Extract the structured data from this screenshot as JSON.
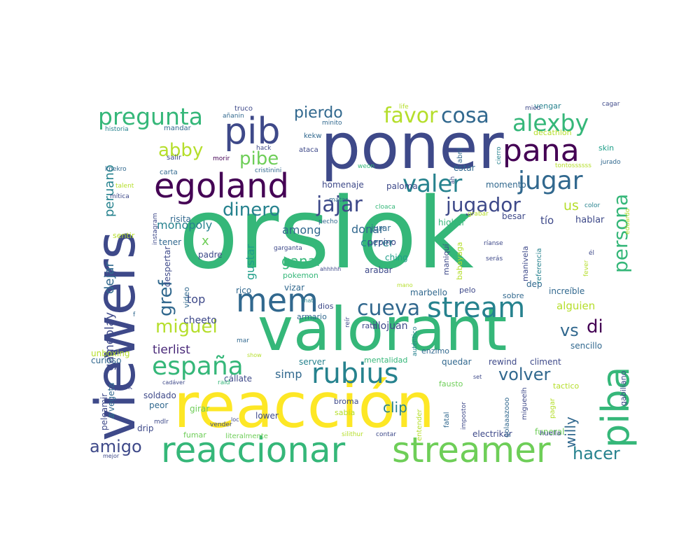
{
  "palette": [
    "#440154",
    "#482878",
    "#3e4989",
    "#31688e",
    "#26828e",
    "#1f9e89",
    "#35b779",
    "#6ece58",
    "#b5de2b",
    "#fde725"
  ],
  "words": [
    {
      "text": "orslok",
      "color": "#35b779",
      "weight": 1.0
    },
    {
      "text": "viewers",
      "color": "#3e4989",
      "weight": 0.8
    },
    {
      "text": "poner",
      "color": "#3e4989",
      "weight": 0.74
    },
    {
      "text": "valorant",
      "color": "#35b779",
      "weight": 0.78
    },
    {
      "text": "reacción",
      "color": "#fde725",
      "weight": 0.76
    },
    {
      "text": "pib",
      "color": "#3e4989",
      "weight": 0.46
    },
    {
      "text": "pana",
      "color": "#440154",
      "weight": 0.38
    },
    {
      "text": "egoland",
      "color": "#440154",
      "weight": 0.43
    },
    {
      "text": "reaccionar",
      "color": "#35b779",
      "weight": 0.48
    },
    {
      "text": "streamer",
      "color": "#6ece58",
      "weight": 0.48
    },
    {
      "text": "piba",
      "color": "#35b779",
      "weight": 0.5
    },
    {
      "text": "mem",
      "color": "#31688e",
      "weight": 0.42
    },
    {
      "text": "stream",
      "color": "#26828e",
      "weight": 0.38
    },
    {
      "text": "rubius",
      "color": "#26828e",
      "weight": 0.36
    },
    {
      "text": "españa",
      "color": "#35b779",
      "weight": 0.33
    },
    {
      "text": "jugar",
      "color": "#31688e",
      "weight": 0.33
    },
    {
      "text": "pregunta",
      "color": "#35b779",
      "weight": 0.3
    },
    {
      "text": "alexby",
      "color": "#35b779",
      "weight": 0.3
    },
    {
      "text": "valer",
      "color": "#26828e",
      "weight": 0.32
    },
    {
      "text": "cueva",
      "color": "#31688e",
      "weight": 0.29
    },
    {
      "text": "jajar",
      "color": "#3e4989",
      "weight": 0.29
    },
    {
      "text": "cosa",
      "color": "#31688e",
      "weight": 0.27
    },
    {
      "text": "favor",
      "color": "#b5de2b",
      "weight": 0.27
    },
    {
      "text": "persona",
      "color": "#35b779",
      "weight": 0.25
    },
    {
      "text": "pibe",
      "color": "#6ece58",
      "weight": 0.23
    },
    {
      "text": "abby",
      "color": "#b5de2b",
      "weight": 0.24
    },
    {
      "text": "dinero",
      "color": "#26828e",
      "weight": 0.24
    },
    {
      "text": "jugador",
      "color": "#3e4989",
      "weight": 0.25
    },
    {
      "text": "gref",
      "color": "#31688e",
      "weight": 0.24
    },
    {
      "text": "miguel",
      "color": "#b5de2b",
      "weight": 0.24
    },
    {
      "text": "volver",
      "color": "#31688e",
      "weight": 0.23
    },
    {
      "text": "amigo",
      "color": "#3e4989",
      "weight": 0.22
    },
    {
      "text": "hacer",
      "color": "#26828e",
      "weight": 0.22
    },
    {
      "text": "di",
      "color": "#440154",
      "weight": 0.23
    },
    {
      "text": "vs",
      "color": "#31688e",
      "weight": 0.22
    },
    {
      "text": "pierdo",
      "color": "#31688e",
      "weight": 0.2
    },
    {
      "text": "willy",
      "color": "#31688e",
      "weight": 0.18
    },
    {
      "text": "ganar",
      "color": "#35b779",
      "weight": 0.18
    },
    {
      "text": "clip",
      "color": "#26828e",
      "weight": 0.17
    },
    {
      "text": "peruano",
      "color": "#26828e",
      "weight": 0.16
    },
    {
      "text": "dejar",
      "color": "#31688e",
      "weight": 0.16
    },
    {
      "text": "gameplay",
      "color": "#3e4989",
      "weight": 0.15
    },
    {
      "text": "tierlist",
      "color": "#482878",
      "weight": 0.15
    },
    {
      "text": "monopoly",
      "color": "#26828e",
      "weight": 0.14
    },
    {
      "text": "among",
      "color": "#31688e",
      "weight": 0.14
    },
    {
      "text": "correr",
      "color": "#26828e",
      "weight": 0.14
    },
    {
      "text": "donar",
      "color": "#31688e",
      "weight": 0.14
    },
    {
      "text": "top",
      "color": "#3e4989",
      "weight": 0.14
    },
    {
      "text": "gustar",
      "color": "#1f9e89",
      "weight": 0.14
    },
    {
      "text": "us",
      "color": "#b5de2b",
      "weight": 0.16
    },
    {
      "text": "alguien",
      "color": "#b5de2b",
      "weight": 0.13
    },
    {
      "text": "simp",
      "color": "#31688e",
      "weight": 0.13
    },
    {
      "text": "cheeto",
      "color": "#3e4989",
      "weight": 0.12
    },
    {
      "text": "illojuan",
      "color": "#3e4989",
      "weight": 0.12
    },
    {
      "text": "x",
      "color": "#6ece58",
      "weight": 0.13
    },
    {
      "text": "tío",
      "color": "#3e4989",
      "weight": 0.11
    },
    {
      "text": "hablar",
      "color": "#3e4989",
      "weight": 0.1
    },
    {
      "text": "risita",
      "color": "#31688e",
      "weight": 0.1
    },
    {
      "text": "sentir",
      "color": "#b5de2b",
      "weight": 0.1
    },
    {
      "text": "tener",
      "color": "#31688e",
      "weight": 0.09
    },
    {
      "text": "ching",
      "color": "#1f9e89",
      "weight": 0.09
    },
    {
      "text": "pepino",
      "color": "#3e4989",
      "weight": 0.09
    },
    {
      "text": "jurar",
      "color": "#31688e",
      "weight": 0.09
    },
    {
      "text": "higher",
      "color": "#35b779",
      "weight": 0.09
    },
    {
      "text": "paloma",
      "color": "#3e4989",
      "weight": 0.09
    },
    {
      "text": "homenaje",
      "color": "#3e4989",
      "weight": 0.09
    },
    {
      "text": "momento",
      "color": "#31688e",
      "weight": 0.09
    },
    {
      "text": "besar",
      "color": "#3e4989",
      "weight": 0.09
    },
    {
      "text": "estar",
      "color": "#31688e",
      "weight": 0.09
    },
    {
      "text": "arabar",
      "color": "#3e4989",
      "weight": 0.09
    },
    {
      "text": "padre",
      "color": "#3e4989",
      "weight": 0.09
    },
    {
      "text": "despertar",
      "color": "#3e4989",
      "weight": 0.09
    },
    {
      "text": "video",
      "color": "#31688e",
      "weight": 0.08
    },
    {
      "text": "rico",
      "color": "#31688e",
      "weight": 0.09
    },
    {
      "text": "vizar",
      "color": "#31688e",
      "weight": 0.09
    },
    {
      "text": "dios",
      "color": "#3e4989",
      "weight": 0.09
    },
    {
      "text": "armario",
      "color": "#31688e",
      "weight": 0.08
    },
    {
      "text": "marbello",
      "color": "#31688e",
      "weight": 0.09
    },
    {
      "text": "rata",
      "color": "#3e4989",
      "weight": 0.08
    },
    {
      "text": "enzimo",
      "color": "#31688e",
      "weight": 0.08
    },
    {
      "text": "sobre",
      "color": "#31688e",
      "weight": 0.08
    },
    {
      "text": "increíble",
      "color": "#31688e",
      "weight": 0.09
    },
    {
      "text": "dep",
      "color": "#31688e",
      "weight": 0.09
    },
    {
      "text": "pelo",
      "color": "#3e4989",
      "weight": 0.08
    },
    {
      "text": "pokemon",
      "color": "#35b779",
      "weight": 0.08
    },
    {
      "text": "server",
      "color": "#26828e",
      "weight": 0.09
    },
    {
      "text": "quedar",
      "color": "#31688e",
      "weight": 0.09
    },
    {
      "text": "rewind",
      "color": "#3e4989",
      "weight": 0.09
    },
    {
      "text": "climent",
      "color": "#3e4989",
      "weight": 0.09
    },
    {
      "text": "sencillo",
      "color": "#31688e",
      "weight": 0.09
    },
    {
      "text": "mentalidad",
      "color": "#35b779",
      "weight": 0.09
    },
    {
      "text": "unboxing",
      "color": "#b5de2b",
      "weight": 0.09
    },
    {
      "text": "curioso",
      "color": "#31688e",
      "weight": 0.08
    },
    {
      "text": "pack",
      "color": "#3e4989",
      "weight": 0.09
    },
    {
      "text": "soldado",
      "color": "#3e4989",
      "weight": 0.09
    },
    {
      "text": "peor",
      "color": "#31688e",
      "weight": 0.09
    },
    {
      "text": "girar",
      "color": "#6ece58",
      "weight": 0.09
    },
    {
      "text": "cállate",
      "color": "#3e4989",
      "weight": 0.09
    },
    {
      "text": "broma",
      "color": "#3e4989",
      "weight": 0.09
    },
    {
      "text": "sabía",
      "color": "#b5de2b",
      "weight": 0.09
    },
    {
      "text": "lower",
      "color": "#3e4989",
      "weight": 0.09
    },
    {
      "text": "fumar",
      "color": "#6ece58",
      "weight": 0.09
    },
    {
      "text": "literalmente",
      "color": "#6ece58",
      "weight": 0.08
    },
    {
      "text": "electrikar",
      "color": "#3e4989",
      "weight": 0.09
    },
    {
      "text": "funeral",
      "color": "#6ece58",
      "weight": 0.09
    },
    {
      "text": "huella",
      "color": "#3e4989",
      "weight": 0.08
    },
    {
      "text": "drip",
      "color": "#3e4989",
      "weight": 0.09
    },
    {
      "text": "fausto",
      "color": "#6ece58",
      "weight": 0.09
    },
    {
      "text": "tactico",
      "color": "#b5de2b",
      "weight": 0.08
    },
    {
      "text": "vengar",
      "color": "#26828e",
      "weight": 0.08
    },
    {
      "text": "decathlon",
      "color": "#b5de2b",
      "weight": 0.09
    },
    {
      "text": "skin",
      "color": "#1f9e89",
      "weight": 0.08
    },
    {
      "text": "truco",
      "color": "#3e4989",
      "weight": 0.08
    },
    {
      "text": "mandar",
      "color": "#31688e",
      "weight": 0.08
    },
    {
      "text": "salir",
      "color": "#3e4989",
      "weight": 0.08
    },
    {
      "text": "carta",
      "color": "#31688e",
      "weight": 0.08
    },
    {
      "text": "kekw",
      "color": "#31688e",
      "weight": 0.08
    },
    {
      "text": "ataca",
      "color": "#3e4989",
      "weight": 0.08
    },
    {
      "text": "hack",
      "color": "#3e4989",
      "weight": 0.07
    },
    {
      "text": "morir",
      "color": "#440154",
      "weight": 0.07
    },
    {
      "text": "cristinini",
      "color": "#31688e",
      "weight": 0.07
    },
    {
      "text": "color",
      "color": "#26828e",
      "weight": 0.07
    },
    {
      "text": "cagar",
      "color": "#3e4989",
      "weight": 0.07
    },
    {
      "text": "life",
      "color": "#b5de2b",
      "weight": 0.07
    },
    {
      "text": "mieo",
      "color": "#3e4989",
      "weight": 0.07
    },
    {
      "text": "minito",
      "color": "#31688e",
      "weight": 0.07
    },
    {
      "text": "historia",
      "color": "#26828e",
      "weight": 0.07
    },
    {
      "text": "añanin",
      "color": "#31688e",
      "weight": 0.07
    },
    {
      "text": "knekro",
      "color": "#31688e",
      "weight": 0.07
    },
    {
      "text": "talent",
      "color": "#b5de2b",
      "weight": 0.07
    },
    {
      "text": "mítica",
      "color": "#3e4989",
      "weight": 0.07
    },
    {
      "text": "weon",
      "color": "#35b779",
      "weight": 0.07
    },
    {
      "text": "matar",
      "color": "#31688e",
      "weight": 0.07
    },
    {
      "text": "cloaca",
      "color": "#35b779",
      "weight": 0.07
    },
    {
      "text": "pecho",
      "color": "#31688e",
      "weight": 0.07
    },
    {
      "text": "garganta",
      "color": "#3e4989",
      "weight": 0.07
    },
    {
      "text": "ahhhhh",
      "color": "#3e4989",
      "weight": 0.07
    },
    {
      "text": "ríanse",
      "color": "#3e4989",
      "weight": 0.07
    },
    {
      "text": "serás",
      "color": "#3e4989",
      "weight": 0.07
    },
    {
      "text": "él",
      "color": "#3e4989",
      "weight": 0.07
    },
    {
      "text": "mano",
      "color": "#b5de2b",
      "weight": 0.07
    },
    {
      "text": "chat",
      "color": "#26828e",
      "weight": 0.07
    },
    {
      "text": "show",
      "color": "#b5de2b",
      "weight": 0.07
    },
    {
      "text": "mar",
      "color": "#31688e",
      "weight": 0.07
    },
    {
      "text": "f",
      "color": "#31688e",
      "weight": 0.07
    },
    {
      "text": "cadáver",
      "color": "#3e4989",
      "weight": 0.07
    },
    {
      "text": "raid",
      "color": "#35b779",
      "weight": 0.07
    },
    {
      "text": "set",
      "color": "#3e4989",
      "weight": 0.07
    },
    {
      "text": "iq",
      "color": "#26828e",
      "weight": 0.07
    },
    {
      "text": "mdlr",
      "color": "#3e4989",
      "weight": 0.07
    },
    {
      "text": "loc",
      "color": "#3e4989",
      "weight": 0.07
    },
    {
      "text": "vender",
      "color": "#3e4989",
      "weight": 0.07
    },
    {
      "text": "silithur",
      "color": "#b5de2b",
      "weight": 0.07
    },
    {
      "text": "contar",
      "color": "#3e4989",
      "weight": 0.07
    },
    {
      "text": "mejor",
      "color": "#3e4989",
      "weight": 0.07
    },
    {
      "text": "grabar",
      "color": "#b5de2b",
      "weight": 0.07
    },
    {
      "text": "tontossssss",
      "color": "#b5de2b",
      "weight": 0.07
    },
    {
      "text": "jurado",
      "color": "#31688e",
      "weight": 0.07
    },
    {
      "text": "instagram",
      "color": "#3e4989",
      "weight": 0.07
    },
    {
      "text": "abril",
      "color": "#31688e",
      "weight": 0.08
    },
    {
      "text": "cierro",
      "color": "#26828e",
      "weight": 0.07
    },
    {
      "text": "ah",
      "color": "#3e4989",
      "weight": 0.07
    },
    {
      "text": "maniquí",
      "color": "#3e4989",
      "weight": 0.08
    },
    {
      "text": "babayaga",
      "color": "#b5de2b",
      "weight": 0.08
    },
    {
      "text": "manivela",
      "color": "#3e4989",
      "weight": 0.08
    },
    {
      "text": "referencia",
      "color": "#26828e",
      "weight": 0.07
    },
    {
      "text": "reír",
      "color": "#3e4989",
      "weight": 0.07
    },
    {
      "text": "auténtico",
      "color": "#26828e",
      "weight": 0.07
    },
    {
      "text": "entender",
      "color": "#b5de2b",
      "weight": 0.07
    },
    {
      "text": "fatal",
      "color": "#31688e",
      "weight": 0.07
    },
    {
      "text": "impostor",
      "color": "#3e4989",
      "weight": 0.07
    },
    {
      "text": "golaaazooo",
      "color": "#31688e",
      "weight": 0.07
    },
    {
      "text": "migueelh",
      "color": "#3e4989",
      "weight": 0.07
    },
    {
      "text": "pagar",
      "color": "#b5de2b",
      "weight": 0.07
    },
    {
      "text": "peleamir",
      "color": "#3e4989",
      "weight": 0.08
    },
    {
      "text": "vegeta",
      "color": "#31688e",
      "weight": 0.08
    },
    {
      "text": "gabiliano",
      "color": "#3e4989",
      "weight": 0.08
    },
    {
      "text": "fever",
      "color": "#b5de2b",
      "weight": 0.07
    },
    {
      "text": "eduardo",
      "color": "#b5de2b",
      "weight": 0.07
    }
  ]
}
